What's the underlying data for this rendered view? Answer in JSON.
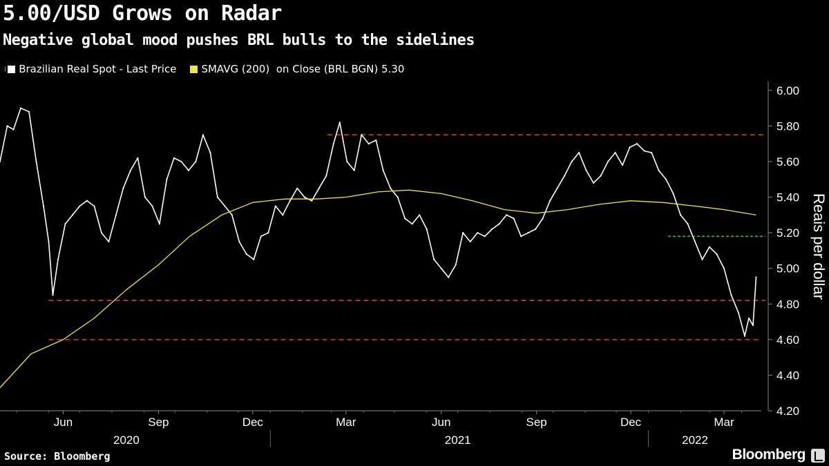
{
  "chart_data": {
    "type": "line",
    "title": "5.00/USD Grows on Radar",
    "subtitle": "Negative global mood pushes BRL bulls to the sidelines",
    "ylabel": "Reais per dollar",
    "ylim": [
      4.2,
      6.05
    ],
    "yticks": [
      "6.00",
      "5.80",
      "5.60",
      "5.40",
      "5.20",
      "5.00",
      "4.80",
      "4.60",
      "4.40",
      "4.20"
    ],
    "x_months": [
      "Jun",
      "Sep",
      "Dec",
      "Mar",
      "Jun",
      "Sep",
      "Dec",
      "Mar"
    ],
    "x_years": [
      "2020",
      "2021",
      "2022"
    ],
    "xlim": [
      "2020-04-15",
      "2022-04-20"
    ],
    "series": [
      {
        "name": "Brazilian Real Spot - Last Price",
        "color": "#ffffff",
        "points": [
          [
            "2020-04-15",
            5.6
          ],
          [
            "2020-04-22",
            5.8
          ],
          [
            "2020-04-28",
            5.78
          ],
          [
            "2020-05-05",
            5.9
          ],
          [
            "2020-05-13",
            5.88
          ],
          [
            "2020-05-20",
            5.6
          ],
          [
            "2020-05-27",
            5.35
          ],
          [
            "2020-06-01",
            5.15
          ],
          [
            "2020-06-05",
            4.85
          ],
          [
            "2020-06-10",
            5.05
          ],
          [
            "2020-06-17",
            5.25
          ],
          [
            "2020-06-24",
            5.3
          ],
          [
            "2020-07-01",
            5.35
          ],
          [
            "2020-07-08",
            5.38
          ],
          [
            "2020-07-15",
            5.35
          ],
          [
            "2020-07-22",
            5.2
          ],
          [
            "2020-07-29",
            5.15
          ],
          [
            "2020-08-05",
            5.3
          ],
          [
            "2020-08-12",
            5.45
          ],
          [
            "2020-08-19",
            5.55
          ],
          [
            "2020-08-26",
            5.62
          ],
          [
            "2020-09-02",
            5.4
          ],
          [
            "2020-09-09",
            5.35
          ],
          [
            "2020-09-16",
            5.25
          ],
          [
            "2020-09-23",
            5.5
          ],
          [
            "2020-09-30",
            5.62
          ],
          [
            "2020-10-07",
            5.6
          ],
          [
            "2020-10-14",
            5.55
          ],
          [
            "2020-10-21",
            5.6
          ],
          [
            "2020-10-28",
            5.75
          ],
          [
            "2020-11-04",
            5.65
          ],
          [
            "2020-11-11",
            5.4
          ],
          [
            "2020-11-18",
            5.35
          ],
          [
            "2020-11-25",
            5.3
          ],
          [
            "2020-12-02",
            5.15
          ],
          [
            "2020-12-09",
            5.08
          ],
          [
            "2020-12-16",
            5.05
          ],
          [
            "2020-12-23",
            5.18
          ],
          [
            "2020-12-30",
            5.2
          ],
          [
            "2021-01-06",
            5.35
          ],
          [
            "2021-01-13",
            5.3
          ],
          [
            "2021-01-20",
            5.38
          ],
          [
            "2021-01-27",
            5.45
          ],
          [
            "2021-02-03",
            5.4
          ],
          [
            "2021-02-10",
            5.38
          ],
          [
            "2021-02-17",
            5.45
          ],
          [
            "2021-02-24",
            5.52
          ],
          [
            "2021-03-03",
            5.7
          ],
          [
            "2021-03-09",
            5.82
          ],
          [
            "2021-03-16",
            5.6
          ],
          [
            "2021-03-23",
            5.55
          ],
          [
            "2021-03-30",
            5.75
          ],
          [
            "2021-04-06",
            5.7
          ],
          [
            "2021-04-13",
            5.72
          ],
          [
            "2021-04-20",
            5.55
          ],
          [
            "2021-04-27",
            5.45
          ],
          [
            "2021-05-04",
            5.4
          ],
          [
            "2021-05-11",
            5.28
          ],
          [
            "2021-05-18",
            5.25
          ],
          [
            "2021-05-25",
            5.3
          ],
          [
            "2021-06-01",
            5.22
          ],
          [
            "2021-06-08",
            5.05
          ],
          [
            "2021-06-15",
            5.0
          ],
          [
            "2021-06-22",
            4.95
          ],
          [
            "2021-06-29",
            5.02
          ],
          [
            "2021-07-06",
            5.2
          ],
          [
            "2021-07-13",
            5.15
          ],
          [
            "2021-07-20",
            5.2
          ],
          [
            "2021-07-27",
            5.18
          ],
          [
            "2021-08-03",
            5.22
          ],
          [
            "2021-08-10",
            5.25
          ],
          [
            "2021-08-17",
            5.3
          ],
          [
            "2021-08-24",
            5.28
          ],
          [
            "2021-08-31",
            5.18
          ],
          [
            "2021-09-07",
            5.2
          ],
          [
            "2021-09-14",
            5.22
          ],
          [
            "2021-09-21",
            5.28
          ],
          [
            "2021-09-28",
            5.38
          ],
          [
            "2021-10-05",
            5.45
          ],
          [
            "2021-10-12",
            5.52
          ],
          [
            "2021-10-19",
            5.6
          ],
          [
            "2021-10-26",
            5.65
          ],
          [
            "2021-11-02",
            5.55
          ],
          [
            "2021-11-09",
            5.48
          ],
          [
            "2021-11-16",
            5.52
          ],
          [
            "2021-11-23",
            5.6
          ],
          [
            "2021-11-30",
            5.65
          ],
          [
            "2021-12-07",
            5.58
          ],
          [
            "2021-12-14",
            5.68
          ],
          [
            "2021-12-21",
            5.7
          ],
          [
            "2021-12-28",
            5.66
          ],
          [
            "2022-01-04",
            5.65
          ],
          [
            "2022-01-11",
            5.55
          ],
          [
            "2022-01-18",
            5.5
          ],
          [
            "2022-01-25",
            5.42
          ],
          [
            "2022-02-01",
            5.3
          ],
          [
            "2022-02-08",
            5.25
          ],
          [
            "2022-02-15",
            5.15
          ],
          [
            "2022-02-22",
            5.05
          ],
          [
            "2022-03-01",
            5.12
          ],
          [
            "2022-03-08",
            5.08
          ],
          [
            "2022-03-15",
            5.0
          ],
          [
            "2022-03-22",
            4.85
          ],
          [
            "2022-03-29",
            4.75
          ],
          [
            "2022-04-04",
            4.62
          ],
          [
            "2022-04-08",
            4.72
          ],
          [
            "2022-04-12",
            4.68
          ],
          [
            "2022-04-15",
            4.95
          ]
        ]
      },
      {
        "name": "SMAVG (200)  on Close (BRL BGN) 5.30",
        "color": "#f0e442",
        "points": [
          [
            "2020-04-15",
            4.33
          ],
          [
            "2020-05-15",
            4.52
          ],
          [
            "2020-06-15",
            4.6
          ],
          [
            "2020-07-15",
            4.72
          ],
          [
            "2020-08-15",
            4.88
          ],
          [
            "2020-09-15",
            5.02
          ],
          [
            "2020-10-15",
            5.18
          ],
          [
            "2020-11-15",
            5.3
          ],
          [
            "2020-12-15",
            5.37
          ],
          [
            "2021-01-15",
            5.39
          ],
          [
            "2021-02-15",
            5.39
          ],
          [
            "2021-03-15",
            5.4
          ],
          [
            "2021-04-15",
            5.43
          ],
          [
            "2021-05-15",
            5.44
          ],
          [
            "2021-06-15",
            5.42
          ],
          [
            "2021-07-15",
            5.38
          ],
          [
            "2021-08-15",
            5.33
          ],
          [
            "2021-09-15",
            5.31
          ],
          [
            "2021-10-15",
            5.33
          ],
          [
            "2021-11-15",
            5.36
          ],
          [
            "2021-12-15",
            5.38
          ],
          [
            "2022-01-15",
            5.37
          ],
          [
            "2022-02-15",
            5.35
          ],
          [
            "2022-03-15",
            5.33
          ],
          [
            "2022-04-15",
            5.3
          ]
        ]
      }
    ],
    "reference_lines": [
      {
        "value": 5.75,
        "color": "#e8323c",
        "style": "dashed"
      },
      {
        "value": 4.82,
        "color": "#e8323c",
        "style": "dashed"
      },
      {
        "value": 4.6,
        "color": "#e8323c",
        "style": "dashed"
      },
      {
        "value": 5.18,
        "color": "#4caf50",
        "style": "dashed"
      }
    ],
    "legend_position": "top-left",
    "grid": false
  },
  "legend": {
    "series_1": "Brazilian Real Spot - Last Price",
    "series_2": "SMAVG (200)  on Close (BRL BGN) 5.30"
  },
  "source": "Source: Bloomberg",
  "brand": "Bloomberg"
}
